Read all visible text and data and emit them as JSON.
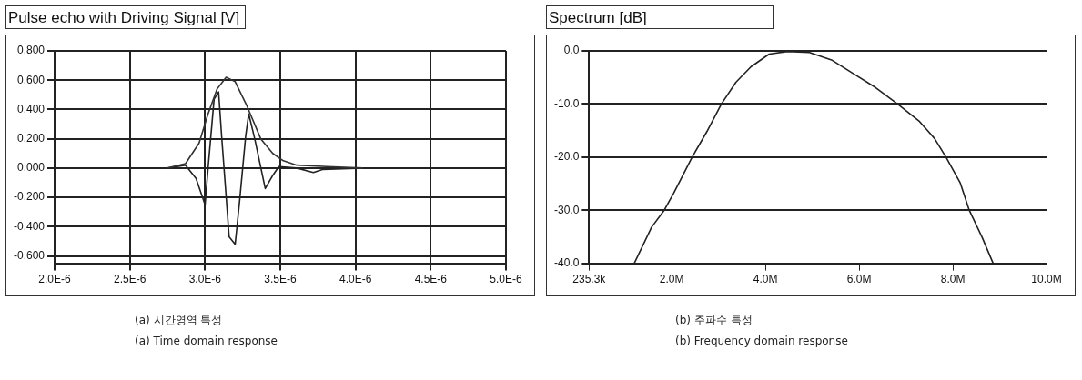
{
  "chart_data": [
    {
      "type": "line",
      "title": "Pulse echo with Driving Signal [V]",
      "series": [
        {
          "color": "#333333",
          "x": [
            2.75e-06,
            2.87e-06,
            2.96e-06,
            3.02e-06,
            3.08e-06,
            3.14e-06,
            3.2e-06,
            3.28e-06,
            3.37e-06,
            3.45e-06,
            3.52e-06,
            3.61e-06,
            3.81e-06,
            4.05e-06
          ],
          "values": [
            0,
            0.03,
            0.17,
            0.37,
            0.54,
            0.62,
            0.59,
            0.42,
            0.2,
            0.1,
            0.05,
            0.02,
            0.01,
            0
          ]
        },
        {
          "color": "#222222",
          "x": [
            2.75e-06,
            2.87e-06,
            2.94e-06,
            3e-06,
            3.02e-06,
            3.06e-06,
            3.09e-06,
            3.11e-06,
            3.16e-06,
            3.2e-06,
            3.23e-06,
            3.27e-06,
            3.29e-06,
            3.33e-06,
            3.4e-06,
            3.45e-06,
            3.49e-06,
            3.61e-06,
            3.72e-06,
            3.78e-06,
            4.05e-06
          ],
          "values": [
            0,
            0.02,
            -0.07,
            -0.25,
            0.0,
            0.47,
            0.52,
            0.22,
            -0.47,
            -0.52,
            -0.22,
            0.22,
            0.37,
            0.2,
            -0.14,
            -0.05,
            0.01,
            0,
            -0.03,
            -0.01,
            0
          ]
        }
      ],
      "xlim": [
        2e-06,
        5e-06
      ],
      "xticks": [
        {
          "value": 2e-06,
          "label": "2.0E-6"
        },
        {
          "value": 2.5e-06,
          "label": "2.5E-6"
        },
        {
          "value": 3e-06,
          "label": "3.0E-6"
        },
        {
          "value": 3.5e-06,
          "label": "3.5E-6"
        },
        {
          "value": 4e-06,
          "label": "4.0E-6"
        },
        {
          "value": 4.5e-06,
          "label": "4.5E-6"
        },
        {
          "value": 5e-06,
          "label": "5.0E-6"
        }
      ],
      "ylim": [
        -0.65,
        0.8
      ],
      "yticks": [
        {
          "value": -0.6,
          "label": "-0.600"
        },
        {
          "value": -0.4,
          "label": "-0.400"
        },
        {
          "value": -0.2,
          "label": "-0.200"
        },
        {
          "value": 0,
          "label": "0.000"
        },
        {
          "value": 0.2,
          "label": "0.200"
        },
        {
          "value": 0.4,
          "label": "0.400"
        },
        {
          "value": 0.6,
          "label": "0.600"
        },
        {
          "value": 0.8,
          "label": "0.800"
        }
      ],
      "grid": true,
      "legend": false,
      "marker": "none",
      "line_style": "solid",
      "annotations": [
        "(a) 시간영역 특성",
        "(a) Time domain response"
      ]
    },
    {
      "type": "line",
      "title": "Spectrum [dB]",
      "series": [
        {
          "color": "#222222",
          "x": [
            1200000,
            1570000,
            1840000,
            2040000,
            2430000,
            2750000,
            3060000,
            3370000,
            3690000,
            4080000,
            4470000,
            4940000,
            5410000,
            5880000,
            6350000,
            6820000,
            7290000,
            7610000,
            7860000,
            8160000,
            8350000,
            8630000,
            8860000
          ],
          "values": [
            -40,
            -33.2,
            -30,
            -26.8,
            -20.1,
            -15.2,
            -10,
            -5.9,
            -3.0,
            -0.6,
            -0.1,
            -0.3,
            -1.7,
            -4.3,
            -6.9,
            -10,
            -13.3,
            -16.5,
            -20.1,
            -24.9,
            -30,
            -35.2,
            -40
          ]
        }
      ],
      "xlim": [
        235300,
        10000000
      ],
      "xticks": [
        {
          "value": 235300,
          "label": "235.3k"
        },
        {
          "value": 2000000,
          "label": "2.0M"
        },
        {
          "value": 4000000,
          "label": "4.0M"
        },
        {
          "value": 6000000,
          "label": "6.0M"
        },
        {
          "value": 8000000,
          "label": "8.0M"
        },
        {
          "value": 10000000,
          "label": "10.0M"
        }
      ],
      "ylim": [
        -40,
        0
      ],
      "yticks": [
        {
          "value": -40,
          "label": "-40.0"
        },
        {
          "value": -30,
          "label": "-30.0"
        },
        {
          "value": -20,
          "label": "-20.0"
        },
        {
          "value": -10,
          "label": "-10.0"
        },
        {
          "value": 0,
          "label": "0.0"
        }
      ],
      "grid": "y",
      "legend": false,
      "marker": "none",
      "line_style": "solid",
      "annotations": [
        "(b) 주파수 특성",
        "(b) Frequency domain response"
      ]
    }
  ]
}
